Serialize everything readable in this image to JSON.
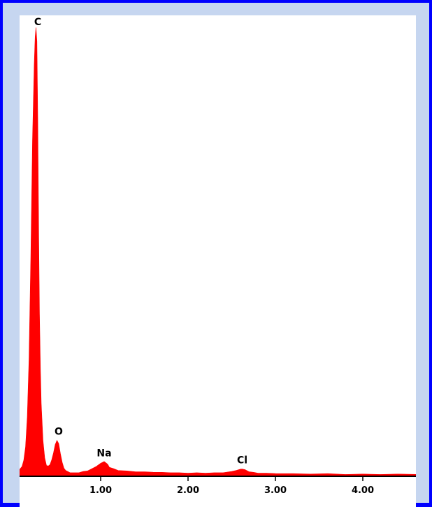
{
  "chart_data": {
    "type": "area",
    "title": "",
    "xlabel": "",
    "ylabel": "",
    "xlim": [
      0.0,
      4.65
    ],
    "ylim": [
      0,
      100
    ],
    "grid": false,
    "fill_color": "#ff0000",
    "xticks": [
      {
        "value": 1.0,
        "label": "1.00"
      },
      {
        "value": 2.0,
        "label": "2.00"
      },
      {
        "value": 3.0,
        "label": "3.00"
      },
      {
        "value": 4.0,
        "label": "4.00"
      }
    ],
    "peak_labels": [
      {
        "label": "C",
        "x": 0.28,
        "y": 100
      },
      {
        "label": "O",
        "x": 0.52,
        "y": 8.0
      },
      {
        "label": "Na",
        "x": 1.04,
        "y": 3.2
      },
      {
        "label": "Cl",
        "x": 2.62,
        "y": 1.6
      }
    ],
    "series": [
      {
        "x": [
          0.0,
          0.01,
          0.02,
          0.04,
          0.06,
          0.08,
          0.1,
          0.12,
          0.14,
          0.16,
          0.18,
          0.2,
          0.22,
          0.24,
          0.25,
          0.26,
          0.27,
          0.28,
          0.29,
          0.3,
          0.31,
          0.32,
          0.34,
          0.36,
          0.38,
          0.4,
          0.42,
          0.44,
          0.46,
          0.48,
          0.5,
          0.52,
          0.54,
          0.56,
          0.58,
          0.6,
          0.65,
          0.7,
          0.75,
          0.8,
          0.85,
          0.9,
          0.95,
          1.0,
          1.02,
          1.04,
          1.06,
          1.08,
          1.1,
          1.15,
          1.2,
          1.3,
          1.4,
          1.5,
          1.6,
          1.7,
          1.8,
          1.9,
          2.0,
          2.1,
          2.2,
          2.3,
          2.4,
          2.5,
          2.55,
          2.6,
          2.62,
          2.65,
          2.7,
          2.75,
          2.8,
          2.9,
          3.0,
          3.2,
          3.4,
          3.6,
          3.8,
          4.0,
          4.2,
          4.4,
          4.65
        ],
        "values": [
          0.8,
          8.0,
          3.5,
          1.6,
          1.3,
          1.6,
          2.2,
          3.5,
          6.5,
          13,
          26,
          48,
          75,
          92,
          98,
          100,
          97,
          80,
          55,
          36,
          24,
          16,
          8.0,
          4.0,
          2.4,
          2.2,
          2.6,
          3.6,
          5.2,
          7.0,
          8.0,
          7.2,
          5.0,
          3.0,
          1.8,
          1.2,
          0.8,
          0.7,
          0.8,
          1.0,
          1.2,
          1.6,
          2.2,
          2.8,
          3.1,
          3.2,
          3.0,
          2.6,
          2.0,
          1.6,
          1.3,
          1.1,
          1.0,
          0.9,
          0.9,
          0.8,
          0.8,
          0.7,
          0.7,
          0.7,
          0.7,
          0.7,
          0.8,
          1.0,
          1.3,
          1.5,
          1.6,
          1.4,
          1.0,
          0.8,
          0.7,
          0.6,
          0.6,
          0.5,
          0.5,
          0.5,
          0.4,
          0.4,
          0.4,
          0.4,
          0.4
        ]
      }
    ]
  }
}
